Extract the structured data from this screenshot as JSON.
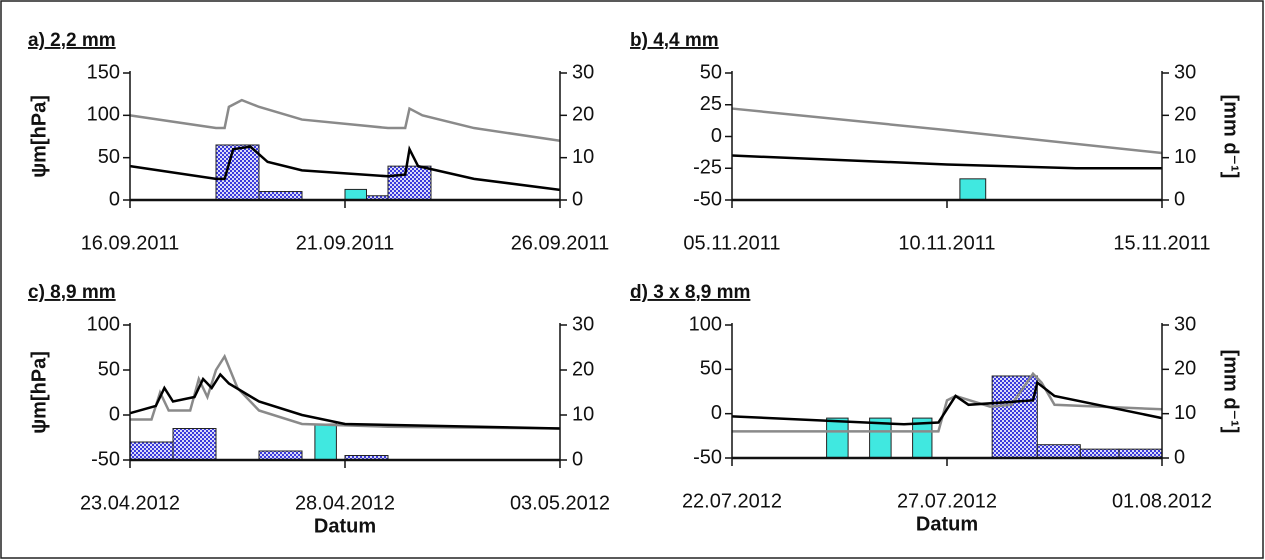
{
  "chart_data": [
    {
      "type": "combo",
      "title": "a) 2,2 mm",
      "ylabel": "ψm[hPa]",
      "xlim": [
        0,
        10
      ],
      "xticks": [
        {
          "value": 0,
          "label": "16.09.2011"
        },
        {
          "value": 5,
          "label": "21.09.2011"
        },
        {
          "value": 10,
          "label": "26.09.2011"
        }
      ],
      "ylim": [
        0,
        150
      ],
      "yticks": [
        0,
        50,
        100,
        150
      ],
      "y2lim": [
        0,
        30
      ],
      "y2ticks": [
        0,
        10,
        20,
        30
      ],
      "bars": [
        {
          "color": "#3b3bdc",
          "hatch": true,
          "axis": "y2",
          "x": [
            2,
            3,
            5.5,
            6
          ],
          "x_end": [
            3,
            4,
            6,
            7
          ],
          "values": [
            13,
            2,
            1,
            8
          ]
        },
        {
          "color": "#40e8e0",
          "hatch": false,
          "axis": "y2",
          "x": [
            5
          ],
          "x_end": [
            5.5
          ],
          "values": [
            2.5
          ]
        }
      ],
      "series": [
        {
          "color": "#8a8a8a",
          "x": [
            0,
            2,
            2.2,
            2.3,
            2.6,
            3,
            4,
            6,
            6.4,
            6.5,
            6.8,
            8,
            10
          ],
          "values": [
            100,
            85,
            85,
            110,
            118,
            110,
            95,
            85,
            85,
            108,
            100,
            85,
            70
          ]
        },
        {
          "color": "#000000",
          "x": [
            0,
            2,
            2.2,
            2.4,
            2.8,
            3.2,
            4,
            6,
            6.4,
            6.5,
            6.7,
            8,
            10
          ],
          "values": [
            40,
            25,
            25,
            60,
            63,
            45,
            35,
            28,
            30,
            60,
            40,
            25,
            12
          ]
        }
      ]
    },
    {
      "type": "combo",
      "title": "b) 4,4 mm",
      "y2label": "[mm d⁻¹]",
      "xlim": [
        0,
        10
      ],
      "xticks": [
        {
          "value": 0,
          "label": "05.11.2011"
        },
        {
          "value": 5,
          "label": "10.11.2011"
        },
        {
          "value": 10,
          "label": "15.11.2011"
        }
      ],
      "ylim": [
        -50,
        50
      ],
      "yticks": [
        -50,
        -25,
        0,
        25,
        50
      ],
      "y2lim": [
        0,
        30
      ],
      "y2ticks": [
        0,
        10,
        20,
        30
      ],
      "bars": [
        {
          "color": "#40e8e0",
          "hatch": false,
          "axis": "y2",
          "x": [
            5.3
          ],
          "x_end": [
            5.9
          ],
          "values": [
            5
          ]
        }
      ],
      "series": [
        {
          "color": "#8a8a8a",
          "x": [
            0,
            5,
            10
          ],
          "values": [
            22,
            5,
            -13
          ]
        },
        {
          "color": "#000000",
          "x": [
            0,
            5,
            8,
            10
          ],
          "values": [
            -15,
            -22,
            -25,
            -25
          ]
        }
      ]
    },
    {
      "type": "combo",
      "title": "c) 8,9 mm",
      "ylabel": "ψm[hPa]",
      "xlabel": "Datum",
      "xlim": [
        0,
        10
      ],
      "xticks": [
        {
          "value": 0,
          "label": "23.04.2012"
        },
        {
          "value": 5,
          "label": "28.04.2012"
        },
        {
          "value": 10,
          "label": "03.05.2012"
        }
      ],
      "ylim": [
        -50,
        100
      ],
      "yticks": [
        -50,
        0,
        50,
        100
      ],
      "y2lim": [
        0,
        30
      ],
      "y2ticks": [
        0,
        10,
        20,
        30
      ],
      "bars": [
        {
          "color": "#3b3bdc",
          "hatch": true,
          "axis": "y2",
          "x": [
            0,
            1,
            3,
            5
          ],
          "x_end": [
            1,
            2,
            4,
            6
          ],
          "values": [
            4,
            7,
            2,
            1
          ]
        },
        {
          "color": "#40e8e0",
          "hatch": false,
          "axis": "y2",
          "x": [
            4.3
          ],
          "x_end": [
            4.8
          ],
          "values": [
            8
          ]
        }
      ],
      "series": [
        {
          "color": "#8a8a8a",
          "x": [
            0,
            0.5,
            0.7,
            0.9,
            1.4,
            1.6,
            1.8,
            2,
            2.2,
            2.5,
            3,
            4,
            6,
            10
          ],
          "values": [
            -5,
            -5,
            25,
            5,
            5,
            40,
            20,
            50,
            65,
            30,
            5,
            -10,
            -13,
            -15
          ]
        },
        {
          "color": "#000000",
          "x": [
            0,
            0.6,
            0.8,
            1,
            1.5,
            1.7,
            1.9,
            2.1,
            2.3,
            3,
            4,
            5,
            10
          ],
          "values": [
            2,
            10,
            30,
            15,
            20,
            40,
            30,
            45,
            35,
            15,
            0,
            -10,
            -15
          ]
        }
      ]
    },
    {
      "type": "combo",
      "title": "d) 3 x 8,9 mm",
      "y2label": "[mm d⁻¹]",
      "xlabel": "Datum",
      "xlim": [
        0,
        10
      ],
      "xticks": [
        {
          "value": 0,
          "label": "22.07.2012"
        },
        {
          "value": 5,
          "label": "27.07.2012"
        },
        {
          "value": 10,
          "label": "01.08.2012"
        }
      ],
      "ylim": [
        -50,
        100
      ],
      "yticks": [
        -50,
        0,
        50,
        100
      ],
      "y2lim": [
        0,
        30
      ],
      "y2ticks": [
        0,
        10,
        20,
        30
      ],
      "bars": [
        {
          "color": "#40e8e0",
          "hatch": false,
          "axis": "y2",
          "x": [
            2.2,
            3.2,
            4.2
          ],
          "x_end": [
            2.7,
            3.7,
            4.65
          ],
          "values": [
            9,
            9,
            9
          ]
        },
        {
          "color": "#3b3bdc",
          "hatch": true,
          "axis": "y2",
          "x": [
            6.05,
            7.1,
            8.1,
            9
          ],
          "x_end": [
            7.1,
            8.1,
            9,
            10
          ],
          "values": [
            18.5,
            3,
            2,
            2
          ]
        }
      ],
      "series": [
        {
          "color": "#8a8a8a",
          "x": [
            0,
            4,
            4.8,
            5,
            5.2,
            6,
            6.5,
            7,
            7.2,
            7.5,
            10
          ],
          "values": [
            -20,
            -20,
            -20,
            15,
            20,
            8,
            10,
            45,
            35,
            10,
            5
          ]
        },
        {
          "color": "#000000",
          "x": [
            0,
            4,
            4.8,
            5,
            5.2,
            5.5,
            7,
            7.1,
            7.5,
            10
          ],
          "values": [
            -3,
            -12,
            -10,
            5,
            20,
            10,
            15,
            35,
            20,
            -5
          ]
        }
      ]
    }
  ]
}
